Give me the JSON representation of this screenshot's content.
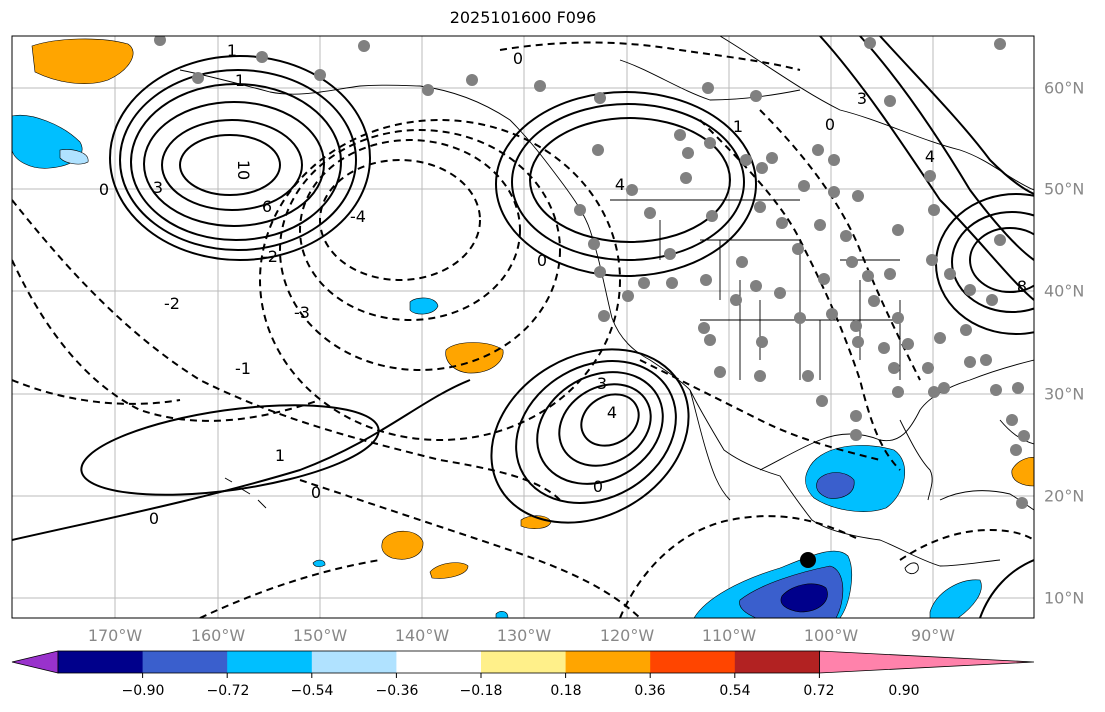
{
  "title": "2025101600 F096",
  "lon_labels": [
    "170°W",
    "160°W",
    "150°W",
    "140°W",
    "130°W",
    "120°W",
    "110°W",
    "100°W",
    "90°W"
  ],
  "lat_labels": [
    "60°N",
    "50°N",
    "40°N",
    "30°N",
    "20°N",
    "10°N"
  ],
  "contour_labels": {
    "neg1": "-1",
    "neg2": "-2",
    "neg3": "-3",
    "neg4": "-4",
    "zero": "0",
    "one": "1",
    "three": "3",
    "six": "6",
    "ten": "10",
    "eight": "8"
  },
  "colorbar": {
    "colors": [
      "#9932cc",
      "#00008b",
      "#3a5fcd",
      "#00bfff",
      "#b0e2ff",
      "#ffffff",
      "#fff08a",
      "#ffa500",
      "#ff4500",
      "#b22222",
      "#ff82ab"
    ],
    "ticks": [
      "−0.90",
      "−0.72",
      "−0.54",
      "−0.36",
      "−0.18",
      "0.18",
      "0.36",
      "0.54",
      "0.72",
      "0.90"
    ]
  },
  "marker_color": "#000000",
  "station_color": "#808080"
}
